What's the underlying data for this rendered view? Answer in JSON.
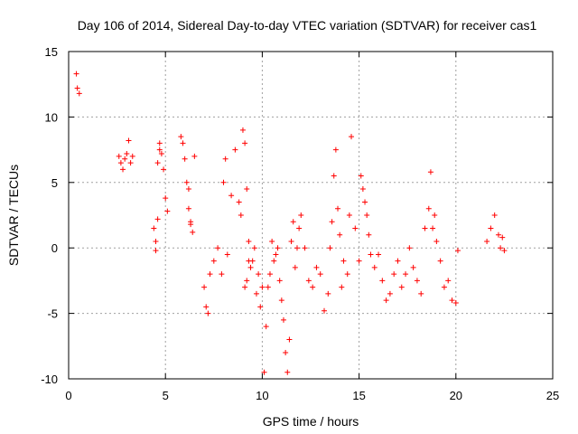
{
  "chart_data": {
    "type": "scatter",
    "title": "Day 106 of 2014, Sidereal Day-to-day VTEC variation (SDTVAR) for receiver cas1",
    "xlabel": "GPS time / hours",
    "ylabel": "SDTVAR / TECUs",
    "xlim": [
      0,
      25
    ],
    "ylim": [
      -10,
      15
    ],
    "xticks": [
      0,
      5,
      10,
      15,
      20,
      25
    ],
    "yticks": [
      -10,
      -5,
      0,
      5,
      10,
      15
    ],
    "grid": true,
    "marker": "+",
    "color": "#ff0000",
    "series": [
      {
        "name": "cas1",
        "x": [
          0.4,
          0.45,
          0.55,
          2.6,
          2.7,
          2.8,
          2.9,
          3.0,
          3.1,
          3.2,
          3.3,
          4.4,
          4.5,
          4.6,
          4.7,
          4.8,
          4.9,
          5.0,
          5.1,
          4.5,
          4.6,
          4.7,
          5.8,
          5.9,
          6.0,
          6.1,
          6.2,
          6.3,
          6.4,
          6.5,
          6.2,
          6.3,
          7.0,
          7.1,
          7.2,
          7.3,
          7.5,
          7.7,
          7.9,
          8.0,
          8.1,
          8.2,
          8.4,
          8.6,
          8.8,
          8.9,
          9.0,
          9.1,
          9.2,
          9.3,
          9.4,
          9.1,
          9.2,
          9.3,
          9.5,
          9.6,
          9.7,
          9.8,
          9.9,
          10.0,
          10.1,
          10.2,
          10.3,
          10.4,
          10.5,
          10.6,
          10.7,
          10.8,
          10.9,
          11.0,
          11.1,
          11.2,
          11.3,
          11.4,
          11.5,
          11.6,
          11.7,
          11.8,
          11.9,
          12.0,
          12.2,
          12.4,
          12.6,
          12.8,
          13.0,
          13.2,
          13.4,
          13.5,
          13.6,
          13.7,
          13.8,
          13.9,
          14.0,
          14.1,
          14.2,
          14.4,
          14.5,
          14.6,
          14.8,
          15.0,
          15.1,
          15.2,
          15.3,
          15.4,
          15.5,
          15.6,
          15.8,
          16.0,
          16.2,
          16.4,
          16.6,
          16.8,
          17.0,
          17.2,
          17.4,
          17.6,
          17.8,
          18.0,
          18.2,
          18.4,
          18.6,
          18.7,
          18.8,
          18.9,
          19.0,
          19.2,
          19.4,
          19.6,
          19.8,
          20.0,
          20.1,
          21.6,
          21.8,
          22.0,
          22.2,
          22.3,
          22.4,
          22.5
        ],
        "y": [
          13.3,
          12.2,
          11.8,
          7.0,
          6.5,
          6.0,
          6.8,
          7.2,
          8.2,
          6.5,
          7.0,
          1.5,
          0.5,
          2.2,
          8.0,
          7.2,
          6.0,
          3.8,
          2.8,
          -0.2,
          6.5,
          7.5,
          8.5,
          8.0,
          6.8,
          5.0,
          3.0,
          2.0,
          1.2,
          7.0,
          4.5,
          1.8,
          -3.0,
          -4.5,
          -5.0,
          -2.0,
          -1.0,
          0.0,
          -2.0,
          5.0,
          6.8,
          -0.5,
          4.0,
          7.5,
          3.5,
          2.5,
          9.0,
          8.0,
          4.5,
          0.5,
          -1.5,
          -3.0,
          -2.5,
          -1.0,
          -1.0,
          0.0,
          -3.5,
          -2.0,
          -4.5,
          -3.0,
          -9.5,
          -6.0,
          -3.0,
          -2.0,
          0.5,
          -1.0,
          -0.5,
          0.0,
          -2.5,
          -4.0,
          -5.5,
          -8.0,
          -9.5,
          -7.0,
          0.5,
          2.0,
          -1.5,
          0.0,
          1.5,
          2.5,
          0.0,
          -2.5,
          -3.0,
          -1.5,
          -2.0,
          -4.8,
          -3.5,
          0.0,
          2.0,
          5.5,
          7.5,
          3.0,
          1.0,
          -3.0,
          -1.0,
          -2.0,
          2.5,
          8.5,
          1.5,
          -1.0,
          5.5,
          4.5,
          3.5,
          2.5,
          1.0,
          -0.5,
          -1.5,
          -0.5,
          -2.5,
          -4.0,
          -3.5,
          -2.0,
          -1.0,
          -3.0,
          -2.0,
          0.0,
          -1.5,
          -2.5,
          -3.5,
          1.5,
          3.0,
          5.8,
          1.5,
          2.5,
          0.5,
          -1.0,
          -3.0,
          -2.5,
          -4.0,
          -4.2,
          -0.2,
          0.5,
          1.5,
          2.5,
          1.0,
          0.0,
          0.8,
          -0.2
        ]
      }
    ]
  }
}
